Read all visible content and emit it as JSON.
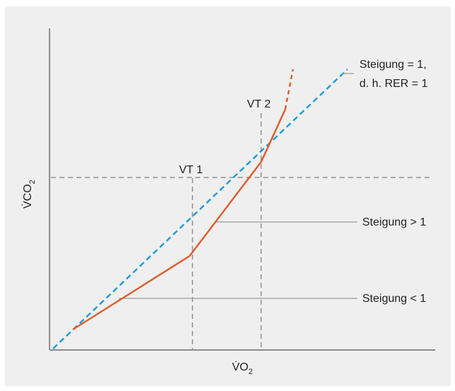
{
  "colors": {
    "background": "#efefef",
    "axis": "#8c8c8c",
    "guide_dashed": "#a8a8a8",
    "leader_line": "#9a9a9a",
    "vco2_curve": "#e05a2b",
    "slope_one_line": "#1a9bd7"
  },
  "axes": {
    "x_label_main": "V̇O",
    "x_label_sub": "2",
    "y_label_main": "V̇CO",
    "y_label_sub": "2"
  },
  "thresholds": {
    "vt1": "VT 1",
    "vt2": "VT 2"
  },
  "annotations": {
    "slope_equal_line1": "Steigung = 1,",
    "slope_equal_line2": "d. h. RER = 1",
    "slope_greater": "Steigung > 1",
    "slope_less": "Steigung < 1"
  }
}
